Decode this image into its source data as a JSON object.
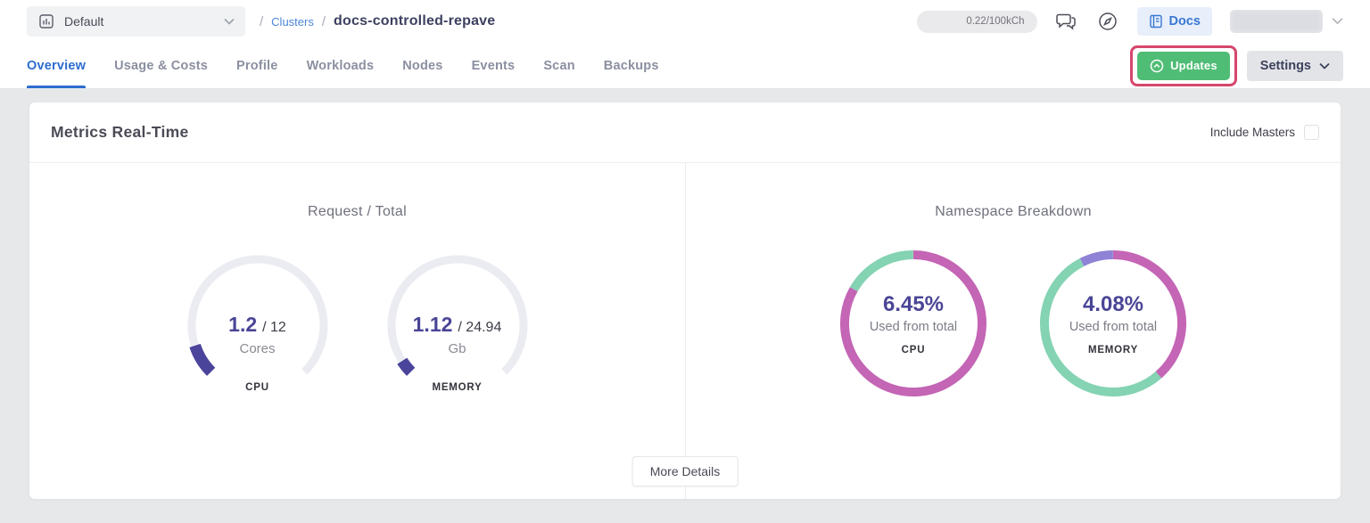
{
  "topbar": {
    "project_selector": {
      "label": "Default"
    },
    "breadcrumb": {
      "sep1": "/",
      "section": "Clusters",
      "sep2": "/",
      "current": "docs-controlled-repave"
    },
    "usage_badge": "0.22/100kCh",
    "docs_label": "Docs"
  },
  "tabs": {
    "items": [
      {
        "label": "Overview",
        "active": true
      },
      {
        "label": "Usage & Costs",
        "active": false
      },
      {
        "label": "Profile",
        "active": false
      },
      {
        "label": "Workloads",
        "active": false
      },
      {
        "label": "Nodes",
        "active": false
      },
      {
        "label": "Events",
        "active": false
      },
      {
        "label": "Scan",
        "active": false
      },
      {
        "label": "Backups",
        "active": false
      }
    ],
    "updates_button": {
      "label": "Updates"
    },
    "settings_button": {
      "label": "Settings"
    }
  },
  "card": {
    "title": "Metrics Real-Time",
    "include_masters_label": "Include Masters",
    "include_masters_checked": false,
    "more_details_label": "More Details"
  },
  "panels": {
    "left_title": "Request / Total",
    "right_title": "Namespace Breakdown"
  },
  "chart_data": [
    {
      "type": "gauge",
      "panel": "Request / Total",
      "metric": "CPU",
      "value": 1.2,
      "total": 12,
      "unit": "Cores",
      "value_label": "1.2",
      "total_label": "/ 12",
      "fraction": 0.1,
      "arc_degrees": 270,
      "track_color": "#ebebf2",
      "value_color": "#4b449b"
    },
    {
      "type": "gauge",
      "panel": "Request / Total",
      "metric": "MEMORY",
      "value": 1.12,
      "total": 24.94,
      "unit": "Gb",
      "value_label": "1.12",
      "total_label": "/ 24.94",
      "fraction": 0.045,
      "arc_degrees": 270,
      "track_color": "#ebebf2",
      "value_color": "#4b449b"
    },
    {
      "type": "donut",
      "panel": "Namespace Breakdown",
      "metric": "CPU",
      "center_value": "6.45%",
      "center_caption": "Used from total",
      "segments": [
        {
          "fraction": 0.833,
          "color": "#c465b5"
        },
        {
          "fraction": 0.167,
          "color": "#84d3b2"
        }
      ]
    },
    {
      "type": "donut",
      "panel": "Namespace Breakdown",
      "metric": "MEMORY",
      "center_value": "4.08%",
      "center_caption": "Used from total",
      "segments": [
        {
          "fraction": 0.385,
          "color": "#c465b5"
        },
        {
          "fraction": 0.54,
          "color": "#84d3b2"
        },
        {
          "fraction": 0.075,
          "color": "#8e82d6"
        }
      ]
    }
  ],
  "colors": {
    "accent_blue": "#2d6ccf",
    "link_blue": "#4a86d9",
    "updates_green": "#50bd76",
    "annotation_pink": "#d5466d",
    "donut_pink": "#c465b5",
    "donut_green": "#84d3b2",
    "donut_purple": "#8e82d6",
    "gauge_purple": "#4b449b",
    "indigo_text": "#4a4596"
  }
}
